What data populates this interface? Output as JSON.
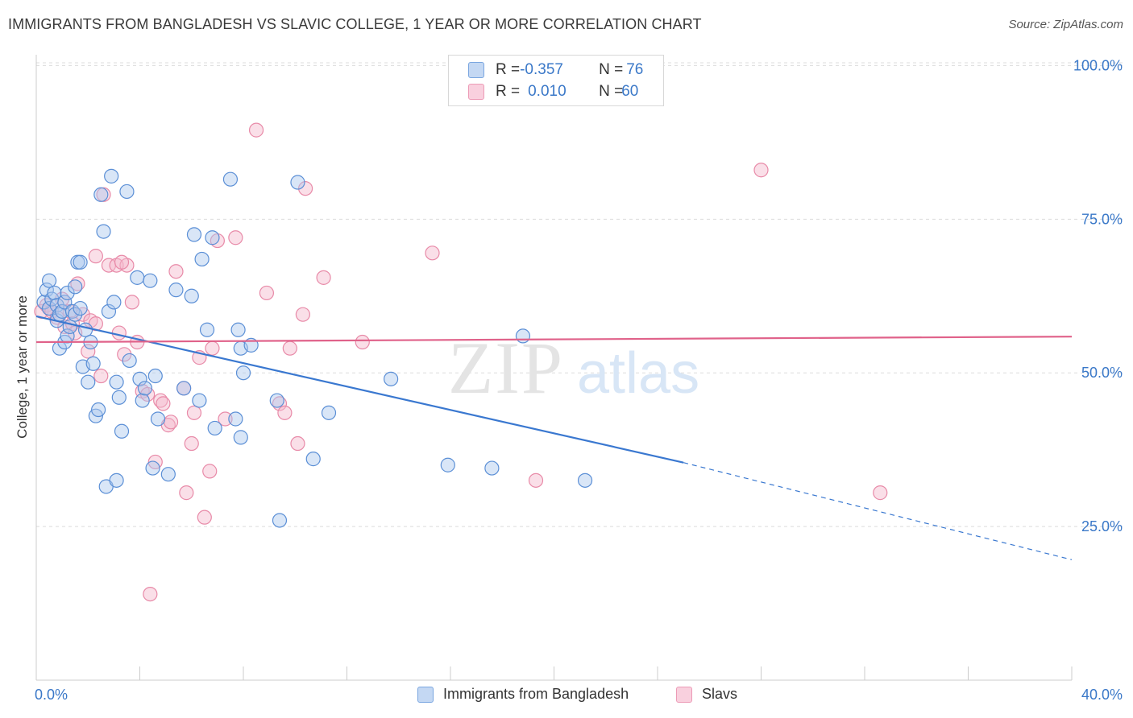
{
  "title": "IMMIGRANTS FROM BANGLADESH VS SLAVIC COLLEGE, 1 YEAR OR MORE CORRELATION CHART",
  "source": "Source: ZipAtlas.com",
  "watermark": {
    "zip": "ZIP",
    "atlas": "atlas"
  },
  "colors": {
    "blue_fill": "#aac8ee",
    "blue_stroke": "#5b8fd6",
    "blue_line": "#3a78d0",
    "pink_fill": "#f5b8cc",
    "pink_stroke": "#e88aa8",
    "pink_line": "#e0628a",
    "axis_text": "#3a78c8",
    "grid": "#dcdcdc"
  },
  "legend_top": {
    "blue": {
      "r_label": "R = ",
      "r_value": "-0.357",
      "n_label": "N = ",
      "n_value": "76"
    },
    "pink": {
      "r_label": "R = ",
      "r_value": "0.010",
      "n_label": "N = ",
      "n_value": "60"
    }
  },
  "chart_data": {
    "type": "scatter",
    "title": "IMMIGRANTS FROM BANGLADESH VS SLAVIC COLLEGE, 1 YEAR OR MORE CORRELATION CHART",
    "xlabel": "",
    "ylabel": "College, 1 year or more",
    "xlim": [
      0,
      40
    ],
    "ylim": [
      0,
      105
    ],
    "x_tick_labels": [
      "0.0%",
      "40.0%"
    ],
    "y_ticks": [
      25,
      50,
      75,
      100
    ],
    "y_tick_labels": [
      "25.0%",
      "50.0%",
      "75.0%",
      "100.0%"
    ],
    "grid": true,
    "legend": "bottom-center",
    "series": [
      {
        "name": "Immigrants from Bangladesh",
        "color": "#5b8fd6",
        "trend": {
          "x": [
            0,
            25,
            40
          ],
          "y": [
            59.2,
            35.4,
            19.6
          ],
          "solid_until_x": 25
        },
        "points": [
          [
            0.3,
            61.5
          ],
          [
            0.4,
            63.5
          ],
          [
            0.5,
            65
          ],
          [
            0.5,
            60.5
          ],
          [
            0.6,
            62
          ],
          [
            0.7,
            63
          ],
          [
            0.8,
            61
          ],
          [
            0.8,
            58.5
          ],
          [
            0.9,
            54
          ],
          [
            0.9,
            59.5
          ],
          [
            1.0,
            60
          ],
          [
            1.1,
            61.5
          ],
          [
            1.1,
            55
          ],
          [
            1.2,
            63
          ],
          [
            1.2,
            56
          ],
          [
            1.3,
            57.5
          ],
          [
            1.4,
            60
          ],
          [
            1.5,
            59.5
          ],
          [
            1.6,
            68
          ],
          [
            1.7,
            68
          ],
          [
            1.7,
            60.5
          ],
          [
            1.8,
            51
          ],
          [
            1.9,
            57
          ],
          [
            2.0,
            48.5
          ],
          [
            2.1,
            55
          ],
          [
            2.2,
            51.5
          ],
          [
            2.3,
            43
          ],
          [
            2.4,
            44
          ],
          [
            2.5,
            79
          ],
          [
            2.6,
            73
          ],
          [
            2.7,
            31.5
          ],
          [
            2.8,
            60
          ],
          [
            2.9,
            82
          ],
          [
            3.0,
            61.5
          ],
          [
            3.1,
            32.5
          ],
          [
            3.2,
            46
          ],
          [
            3.3,
            40.5
          ],
          [
            3.5,
            79.5
          ],
          [
            3.6,
            52
          ],
          [
            3.9,
            65.5
          ],
          [
            4.0,
            49
          ],
          [
            4.1,
            45.5
          ],
          [
            4.2,
            47.5
          ],
          [
            4.4,
            65
          ],
          [
            4.5,
            34.5
          ],
          [
            4.6,
            49.5
          ],
          [
            4.7,
            42.5
          ],
          [
            5.1,
            33.5
          ],
          [
            5.4,
            63.5
          ],
          [
            5.7,
            47.5
          ],
          [
            6.0,
            62.5
          ],
          [
            6.1,
            72.5
          ],
          [
            6.3,
            45.5
          ],
          [
            6.4,
            68.5
          ],
          [
            6.6,
            57
          ],
          [
            6.8,
            72
          ],
          [
            6.9,
            41
          ],
          [
            7.5,
            81.5
          ],
          [
            7.7,
            42.5
          ],
          [
            7.8,
            57
          ],
          [
            7.9,
            39.5
          ],
          [
            7.9,
            54
          ],
          [
            8.0,
            50
          ],
          [
            8.3,
            54.5
          ],
          [
            9.3,
            45.5
          ],
          [
            9.4,
            26
          ],
          [
            10.1,
            81
          ],
          [
            10.7,
            36
          ],
          [
            11.3,
            43.5
          ],
          [
            13.7,
            49
          ],
          [
            15.9,
            35
          ],
          [
            17.6,
            34.5
          ],
          [
            18.8,
            56
          ],
          [
            21.2,
            32.5
          ],
          [
            3.1,
            48.5
          ],
          [
            1.5,
            64
          ]
        ]
      },
      {
        "name": "Slavs",
        "color": "#e88aa8",
        "trend": {
          "x": [
            0,
            40
          ],
          "y": [
            55.0,
            55.9
          ]
        },
        "points": [
          [
            0.2,
            60
          ],
          [
            0.4,
            61
          ],
          [
            0.5,
            60.5
          ],
          [
            0.6,
            60
          ],
          [
            0.8,
            59
          ],
          [
            1.0,
            62
          ],
          [
            1.1,
            57.5
          ],
          [
            1.3,
            60
          ],
          [
            1.4,
            58
          ],
          [
            1.5,
            56.5
          ],
          [
            1.6,
            64.5
          ],
          [
            1.8,
            59.5
          ],
          [
            2.0,
            53.5
          ],
          [
            2.1,
            58.5
          ],
          [
            2.3,
            58
          ],
          [
            2.3,
            69
          ],
          [
            2.5,
            49.5
          ],
          [
            2.6,
            79
          ],
          [
            2.8,
            67.5
          ],
          [
            3.1,
            67.5
          ],
          [
            3.2,
            56.5
          ],
          [
            3.4,
            53
          ],
          [
            3.5,
            67.5
          ],
          [
            3.7,
            61.5
          ],
          [
            3.9,
            55
          ],
          [
            4.1,
            47
          ],
          [
            4.3,
            46.5
          ],
          [
            4.4,
            14
          ],
          [
            4.6,
            35.5
          ],
          [
            4.8,
            45.5
          ],
          [
            4.9,
            45
          ],
          [
            5.1,
            41.5
          ],
          [
            5.2,
            42
          ],
          [
            5.4,
            66.5
          ],
          [
            5.7,
            47.5
          ],
          [
            5.8,
            30.5
          ],
          [
            6.0,
            38.5
          ],
          [
            6.1,
            43.5
          ],
          [
            6.3,
            52.5
          ],
          [
            6.5,
            26.5
          ],
          [
            6.7,
            34
          ],
          [
            6.8,
            54
          ],
          [
            7.0,
            71.5
          ],
          [
            7.3,
            42.5
          ],
          [
            7.7,
            72
          ],
          [
            8.5,
            89.5
          ],
          [
            8.9,
            63
          ],
          [
            9.4,
            45
          ],
          [
            9.6,
            43.5
          ],
          [
            9.8,
            54
          ],
          [
            10.1,
            38.5
          ],
          [
            10.3,
            59.5
          ],
          [
            10.4,
            80
          ],
          [
            11.1,
            65.5
          ],
          [
            12.6,
            55
          ],
          [
            15.3,
            69.5
          ],
          [
            19.3,
            32.5
          ],
          [
            28.0,
            83
          ],
          [
            32.6,
            30.5
          ],
          [
            3.3,
            68
          ]
        ]
      }
    ]
  },
  "legend_bottom": [
    {
      "label": "Immigrants from Bangladesh"
    },
    {
      "label": "Slavs"
    }
  ]
}
